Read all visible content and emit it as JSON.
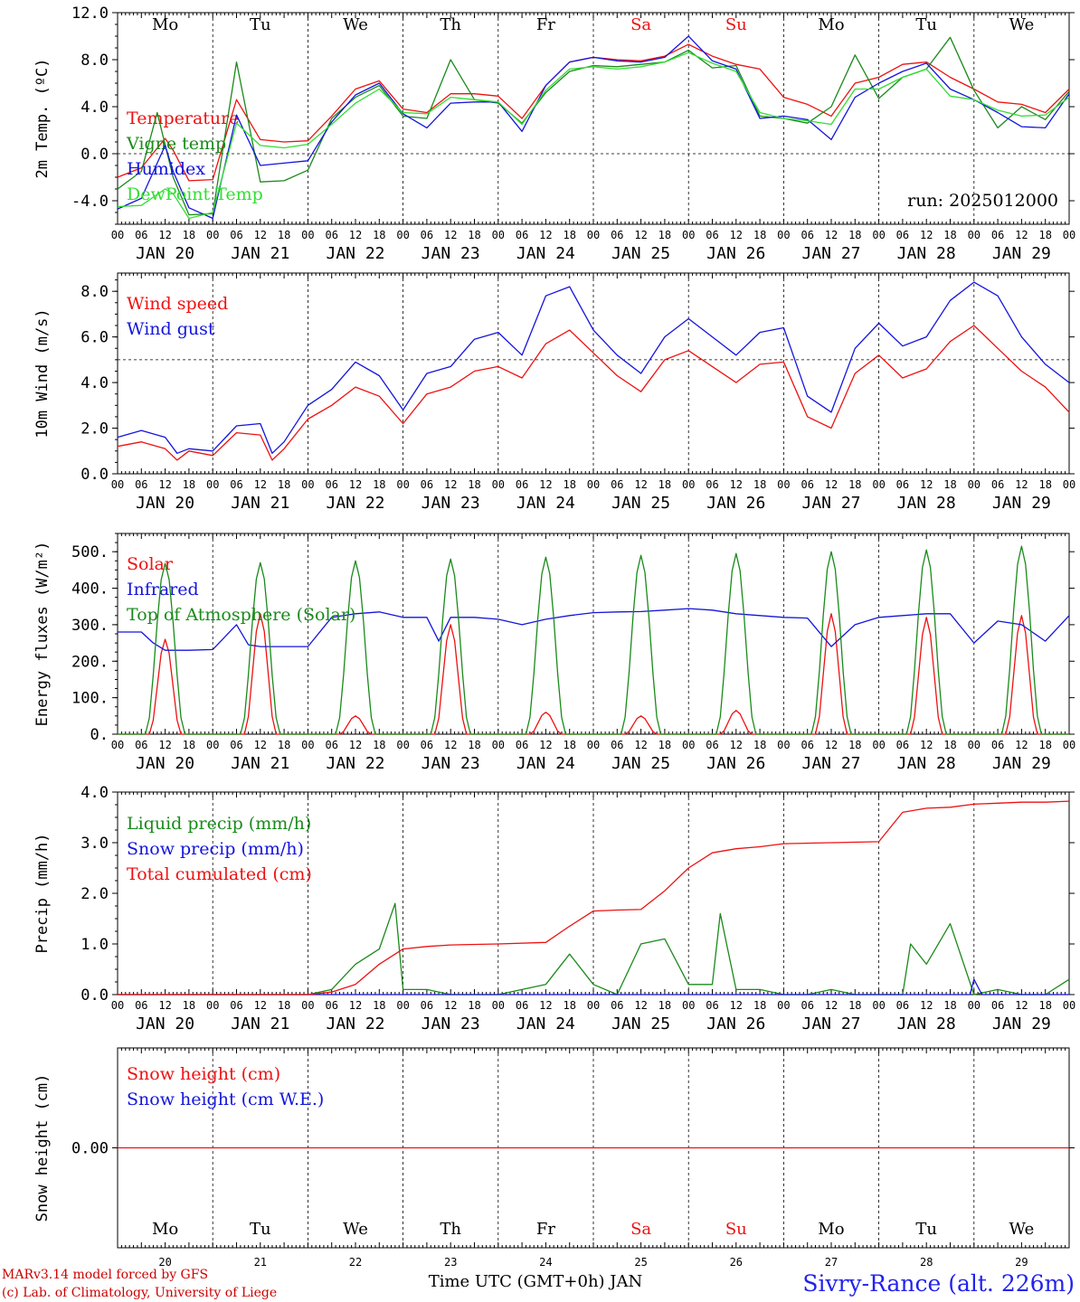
{
  "colors": {
    "red": "#ee1111",
    "green": "#1a8a1a",
    "blue": "#1414dd",
    "lightgreen": "#33dd33",
    "axis": "#000000"
  },
  "days": [
    {
      "name": "Mo",
      "date": "JAN 20",
      "num": "20",
      "weekend": false
    },
    {
      "name": "Tu",
      "date": "JAN 21",
      "num": "21",
      "weekend": false
    },
    {
      "name": "We",
      "date": "JAN 22",
      "num": "22",
      "weekend": false
    },
    {
      "name": "Th",
      "date": "JAN 23",
      "num": "23",
      "weekend": false
    },
    {
      "name": "Fr",
      "date": "JAN 24",
      "num": "24",
      "weekend": false
    },
    {
      "name": "Sa",
      "date": "JAN 25",
      "num": "25",
      "weekend": true
    },
    {
      "name": "Su",
      "date": "JAN 26",
      "num": "26",
      "weekend": true
    },
    {
      "name": "Mo",
      "date": "JAN 27",
      "num": "27",
      "weekend": false
    },
    {
      "name": "Tu",
      "date": "JAN 28",
      "num": "28",
      "weekend": false
    },
    {
      "name": "We",
      "date": "JAN 29",
      "num": "29",
      "weekend": false
    }
  ],
  "hour_labels": [
    "00",
    "06",
    "12",
    "18"
  ],
  "footer": {
    "model": "MARv3.14 model forced by GFS",
    "credit": "(c) Lab. of Climatology, University of Liege",
    "axis_title": "Time UTC (GMT+0h) JAN",
    "station": "Sivry-Rance (alt. 226m)"
  },
  "chart_data": [
    {
      "type": "line",
      "id": "temp",
      "ylabel": "2m Temp. (ºC)",
      "ylim": [
        -6,
        12
      ],
      "yticks": [
        -4,
        0,
        4,
        8,
        12
      ],
      "ytick_labels": [
        "-4.0",
        "0.0",
        "4.0",
        "8.0",
        "12.0"
      ],
      "hline": 0,
      "show_day_names": true,
      "annotation": "run: 2025012000",
      "series": [
        {
          "name": "Temperature",
          "color": "red",
          "x": [
            0,
            6,
            12,
            14,
            18,
            24,
            30,
            36,
            42,
            48,
            54,
            60,
            66,
            72,
            78,
            84,
            90,
            96,
            102,
            108,
            114,
            120,
            126,
            132,
            138,
            144,
            150,
            156,
            162,
            168,
            174,
            180,
            186,
            192,
            198,
            204,
            210,
            216,
            222,
            228,
            234,
            240
          ],
          "values": [
            -2.0,
            -1.2,
            1.3,
            0.3,
            -2.3,
            -2.2,
            4.6,
            1.2,
            1.0,
            1.1,
            3.2,
            5.5,
            6.2,
            3.8,
            3.5,
            5.1,
            5.1,
            4.9,
            3.0,
            5.8,
            7.8,
            8.2,
            8.0,
            7.9,
            8.3,
            9.3,
            8.3,
            7.6,
            7.2,
            4.8,
            4.2,
            3.2,
            6.0,
            6.5,
            7.6,
            7.8,
            6.5,
            5.5,
            4.4,
            4.2,
            3.5,
            5.5
          ]
        },
        {
          "name": "Vigne temp",
          "color": "green",
          "x": [
            0,
            6,
            10,
            14,
            18,
            24,
            30,
            36,
            42,
            48,
            54,
            60,
            66,
            72,
            78,
            84,
            90,
            96,
            102,
            108,
            114,
            120,
            126,
            132,
            138,
            144,
            150,
            156,
            162,
            168,
            174,
            180,
            186,
            192,
            198,
            204,
            210,
            216,
            222,
            228,
            234,
            240
          ],
          "values": [
            -3.0,
            -1.5,
            3.5,
            -2.0,
            -5.2,
            -5.1,
            7.8,
            -2.4,
            -2.3,
            -1.4,
            3.0,
            4.8,
            5.8,
            3.2,
            3.0,
            8.0,
            4.6,
            4.3,
            2.6,
            5.2,
            7.0,
            7.5,
            7.4,
            7.6,
            7.8,
            8.8,
            7.3,
            7.5,
            3.2,
            3.0,
            2.6,
            4.0,
            8.4,
            4.7,
            6.5,
            7.2,
            9.9,
            5.4,
            2.2,
            4.0,
            2.9,
            5.3
          ]
        },
        {
          "name": "Humidex",
          "color": "blue",
          "x": [
            0,
            6,
            12,
            14,
            18,
            24,
            30,
            36,
            42,
            48,
            54,
            60,
            66,
            72,
            78,
            84,
            90,
            96,
            102,
            108,
            114,
            120,
            126,
            132,
            138,
            144,
            150,
            156,
            162,
            168,
            174,
            180,
            186,
            192,
            198,
            204,
            210,
            216,
            222,
            228,
            234,
            240
          ],
          "values": [
            -4.7,
            -3.8,
            0.7,
            -1.5,
            -4.6,
            -5.5,
            3.3,
            -1.0,
            -0.8,
            -0.6,
            2.7,
            5.0,
            6.0,
            3.4,
            2.2,
            4.3,
            4.4,
            4.4,
            1.9,
            5.8,
            7.8,
            8.2,
            7.9,
            7.8,
            8.2,
            10.0,
            7.9,
            7.2,
            3.0,
            3.2,
            2.9,
            1.2,
            4.8,
            6.0,
            7.0,
            7.7,
            5.5,
            4.6,
            3.5,
            2.3,
            2.2,
            5.1
          ]
        },
        {
          "name": "DewPoint Temp",
          "color": "lightgreen",
          "x": [
            0,
            6,
            12,
            14,
            18,
            24,
            30,
            36,
            42,
            48,
            54,
            60,
            66,
            72,
            78,
            84,
            90,
            96,
            102,
            108,
            114,
            120,
            126,
            132,
            138,
            144,
            150,
            156,
            162,
            168,
            174,
            180,
            186,
            192,
            198,
            204,
            210,
            216,
            222,
            228,
            234,
            240
          ],
          "values": [
            -4.5,
            -4.4,
            -3.0,
            -3.4,
            -5.5,
            -5.0,
            2.6,
            0.7,
            0.5,
            0.8,
            2.5,
            4.3,
            5.5,
            3.5,
            3.4,
            4.8,
            4.6,
            4.4,
            2.5,
            5.4,
            7.2,
            7.4,
            7.2,
            7.4,
            7.8,
            8.6,
            7.7,
            7.0,
            3.5,
            3.0,
            2.8,
            2.5,
            5.5,
            5.5,
            6.5,
            7.2,
            4.9,
            4.6,
            3.7,
            3.2,
            3.3,
            4.8
          ]
        }
      ]
    },
    {
      "type": "line",
      "id": "wind",
      "ylabel": "10m Wind (m/s)",
      "ylim": [
        0,
        8.8
      ],
      "yticks": [
        0,
        2,
        4,
        6,
        8
      ],
      "ytick_labels": [
        "0.0",
        "2.0",
        "4.0",
        "6.0",
        "8.0"
      ],
      "hline": 5,
      "show_day_names": false,
      "series": [
        {
          "name": "Wind speed",
          "color": "red",
          "x": [
            0,
            6,
            12,
            15,
            18,
            24,
            30,
            36,
            39,
            42,
            48,
            54,
            60,
            66,
            72,
            78,
            84,
            90,
            96,
            102,
            108,
            114,
            120,
            126,
            132,
            138,
            144,
            150,
            156,
            162,
            168,
            174,
            180,
            186,
            192,
            198,
            204,
            210,
            216,
            222,
            228,
            234,
            240
          ],
          "values": [
            1.2,
            1.4,
            1.1,
            0.6,
            1.0,
            0.8,
            1.8,
            1.7,
            0.6,
            1.1,
            2.4,
            3.0,
            3.8,
            3.4,
            2.2,
            3.5,
            3.8,
            4.5,
            4.7,
            4.2,
            5.7,
            6.3,
            5.3,
            4.3,
            3.6,
            5.0,
            5.4,
            4.7,
            4.0,
            4.8,
            4.9,
            2.5,
            2.0,
            4.4,
            5.2,
            4.2,
            4.6,
            5.8,
            6.5,
            5.5,
            4.5,
            3.8,
            2.7
          ]
        },
        {
          "name": "Wind gust",
          "color": "blue",
          "x": [
            0,
            6,
            12,
            15,
            18,
            24,
            30,
            36,
            39,
            42,
            48,
            54,
            60,
            66,
            72,
            78,
            84,
            90,
            96,
            102,
            108,
            114,
            120,
            126,
            132,
            138,
            144,
            150,
            156,
            162,
            168,
            174,
            180,
            186,
            192,
            198,
            204,
            210,
            216,
            222,
            228,
            234,
            240
          ],
          "values": [
            1.6,
            1.9,
            1.6,
            0.9,
            1.1,
            1.0,
            2.1,
            2.2,
            0.9,
            1.4,
            3.0,
            3.7,
            4.9,
            4.3,
            2.8,
            4.4,
            4.7,
            5.9,
            6.2,
            5.2,
            7.8,
            8.2,
            6.3,
            5.2,
            4.4,
            6.0,
            6.8,
            6.0,
            5.2,
            6.2,
            6.4,
            3.4,
            2.7,
            5.5,
            6.6,
            5.6,
            6.0,
            7.6,
            8.4,
            7.8,
            6.0,
            4.8,
            4.0
          ]
        }
      ]
    },
    {
      "type": "line",
      "id": "energy",
      "ylabel": "Energy fluxes (W/m²)",
      "ylim": [
        0,
        550
      ],
      "yticks": [
        0,
        100,
        200,
        300,
        400,
        500
      ],
      "ytick_labels": [
        "0.",
        "100.",
        "200.",
        "300.",
        "400.",
        "500."
      ],
      "show_day_names": false,
      "series": [
        {
          "name": "Solar",
          "color": "red",
          "days_peak": [
            260,
            330,
            50,
            300,
            60,
            50,
            65,
            330,
            320,
            325
          ]
        },
        {
          "name": "Infrared",
          "color": "blue",
          "x": [
            0,
            6,
            9,
            12,
            18,
            24,
            30,
            33,
            36,
            42,
            48,
            54,
            60,
            66,
            72,
            78,
            81,
            84,
            90,
            96,
            102,
            108,
            114,
            120,
            126,
            132,
            138,
            144,
            150,
            156,
            162,
            168,
            174,
            180,
            186,
            192,
            198,
            204,
            210,
            216,
            222,
            228,
            234,
            240
          ],
          "values": [
            280,
            280,
            250,
            230,
            230,
            232,
            300,
            245,
            240,
            240,
            240,
            320,
            330,
            335,
            320,
            320,
            255,
            320,
            320,
            315,
            300,
            315,
            325,
            333,
            335,
            336,
            340,
            344,
            340,
            330,
            325,
            320,
            318,
            240,
            300,
            320,
            325,
            330,
            330,
            250,
            310,
            300,
            255,
            325
          ]
        },
        {
          "name": "Top of Atmosphere (Solar)",
          "color": "green",
          "days_peak": [
            468,
            470,
            475,
            480,
            485,
            490,
            495,
            500,
            505,
            515
          ]
        }
      ]
    },
    {
      "type": "line",
      "id": "precip",
      "ylabel": "Precip (mm/h)",
      "ylim": [
        0,
        4
      ],
      "yticks": [
        0,
        1,
        2,
        3,
        4
      ],
      "ytick_labels": [
        "0.0",
        "1.0",
        "2.0",
        "3.0",
        "4.0"
      ],
      "show_day_names": false,
      "series": [
        {
          "name": "Liquid precip (mm/h)",
          "color": "green",
          "x": [
            0,
            48,
            54,
            60,
            66,
            70,
            72,
            78,
            84,
            90,
            96,
            108,
            114,
            120,
            126,
            132,
            138,
            144,
            150,
            152,
            156,
            162,
            168,
            174,
            180,
            186,
            192,
            198,
            200,
            204,
            210,
            216,
            222,
            228,
            234,
            240
          ],
          "values": [
            0,
            0,
            0.1,
            0.6,
            0.9,
            1.8,
            0.1,
            0.1,
            0,
            0,
            0,
            0.2,
            0.8,
            0.2,
            0,
            1.0,
            1.1,
            0.2,
            0.2,
            1.6,
            0.1,
            0.1,
            0,
            0,
            0.1,
            0,
            0,
            0,
            1.0,
            0.6,
            1.4,
            0,
            0.1,
            0,
            0,
            0.3
          ]
        },
        {
          "name": "Snow precip (mm/h)",
          "color": "blue",
          "x": [
            0,
            215,
            216,
            218,
            240
          ],
          "values": [
            0,
            0,
            0.3,
            0,
            0
          ]
        },
        {
          "name": "Total cumulated (cm)",
          "color": "red",
          "x": [
            0,
            48,
            54,
            60,
            66,
            72,
            78,
            84,
            96,
            108,
            114,
            120,
            126,
            132,
            138,
            144,
            150,
            156,
            162,
            168,
            180,
            192,
            198,
            204,
            210,
            216,
            222,
            228,
            234,
            240
          ],
          "values": [
            0,
            0,
            0.05,
            0.2,
            0.6,
            0.9,
            0.95,
            0.98,
            1.0,
            1.03,
            1.35,
            1.65,
            1.67,
            1.68,
            2.05,
            2.5,
            2.8,
            2.88,
            2.92,
            2.98,
            3.0,
            3.02,
            3.6,
            3.68,
            3.7,
            3.76,
            3.78,
            3.8,
            3.8,
            3.82
          ]
        }
      ]
    },
    {
      "type": "line",
      "id": "snow",
      "ylabel": "Snow height (cm)",
      "yticks": [
        0
      ],
      "ytick_labels": [
        "0.00"
      ],
      "show_day_names": false,
      "series": [
        {
          "name": "Snow height (cm)",
          "color": "red",
          "x": [
            0,
            240
          ],
          "values": [
            0,
            0
          ]
        },
        {
          "name": "Snow height (cm W.E.)",
          "color": "blue",
          "x": [],
          "values": []
        }
      ]
    }
  ]
}
